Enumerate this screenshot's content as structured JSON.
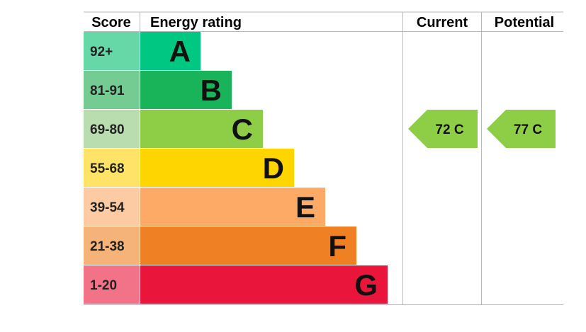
{
  "header": {
    "score": "Score",
    "energy_rating": "Energy rating",
    "current": "Current",
    "potential": "Potential"
  },
  "chart_data": {
    "type": "bar",
    "categories": [
      "A",
      "B",
      "C",
      "D",
      "E",
      "F",
      "G"
    ],
    "score_ranges": [
      "92+",
      "81-91",
      "69-80",
      "55-68",
      "39-54",
      "21-38",
      "1-20"
    ],
    "band_colors": [
      "#00c781",
      "#19b459",
      "#8dce46",
      "#ffd500",
      "#fcaa65",
      "#ef8023",
      "#e9153b"
    ],
    "range_colors": [
      "#66d8a8",
      "#75cc93",
      "#baddb0",
      "#ffe366",
      "#fdcba3",
      "#f5b37a",
      "#f27388"
    ],
    "current": {
      "value": 72,
      "band": "C",
      "label": "72 C",
      "color": "#8dce46"
    },
    "potential": {
      "value": 77,
      "band": "C",
      "label": "77 C",
      "color": "#8dce46"
    },
    "grid_color": "#b9b9b9"
  }
}
